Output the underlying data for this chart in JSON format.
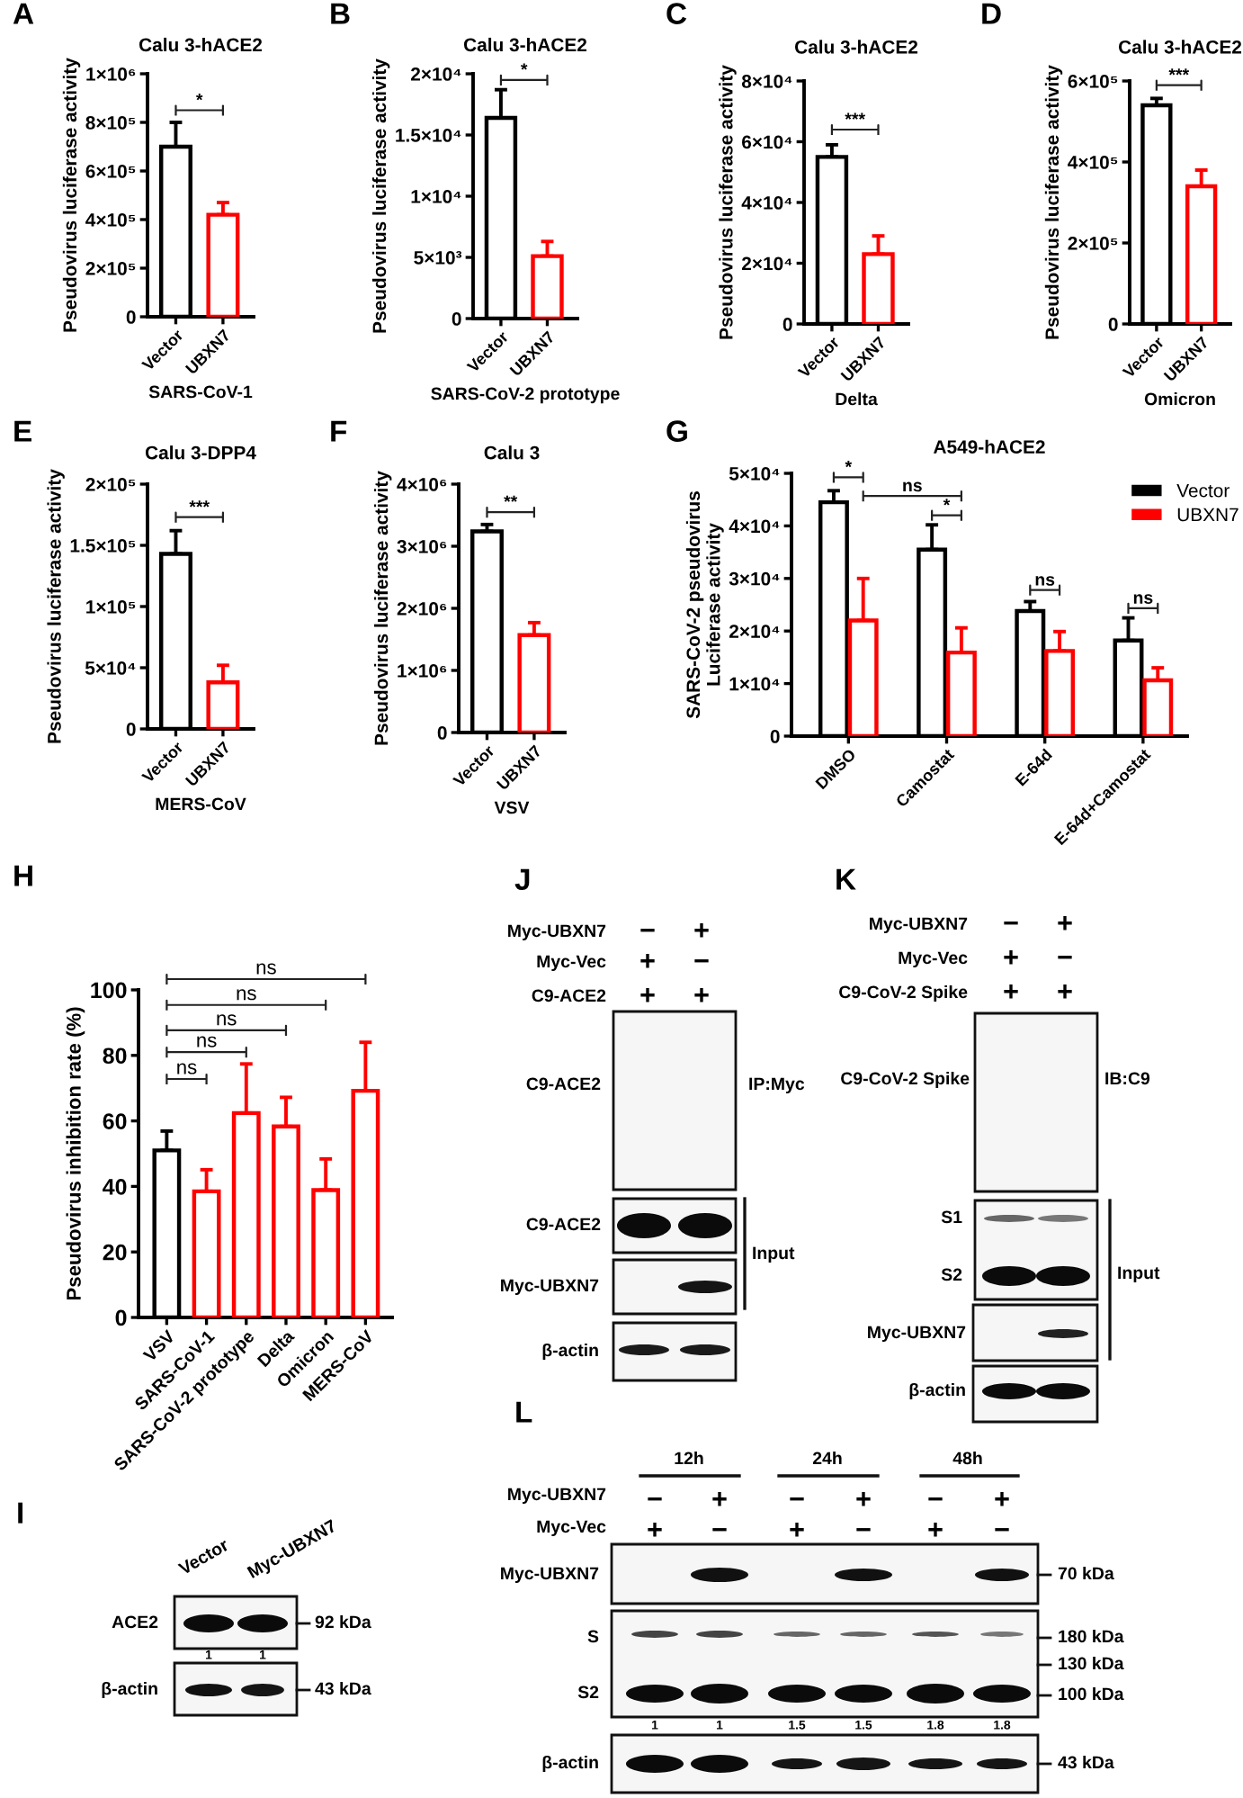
{
  "chart_data": [
    {
      "type": "bar",
      "title": "Calu 3-hACE2",
      "xlabel": "SARS-CoV-1",
      "ylabel": "Pseudovirus luciferase activity",
      "categories": [
        "Vector",
        "UBXN7"
      ],
      "values": [
        700000,
        420000
      ],
      "colors": [
        "#000000",
        "#ff0000"
      ],
      "errors": [
        [
          700000,
          800000
        ],
        [
          420000,
          470000
        ]
      ],
      "ylim": [
        0,
        1000000
      ],
      "yticks": [
        0,
        {
          "value": 200000,
          "label": "2×10⁵"
        },
        {
          "value": 400000,
          "label": "4×10⁵"
        },
        {
          "value": 600000,
          "label": "6×10⁵"
        },
        {
          "value": 800000,
          "label": "8×10⁵"
        },
        {
          "value": 1000000,
          "label": "1×10⁶"
        }
      ],
      "annotations": [
        "A",
        "*"
      ]
    },
    {
      "type": "bar",
      "title": "Calu 3-hACE2",
      "xlabel": "SARS-CoV-2 prototype",
      "ylabel": "Pseudovirus luciferase activity",
      "categories": [
        "Vector",
        "UBXN7"
      ],
      "values": [
        16400,
        5100
      ],
      "colors": [
        "#000000",
        "#ff0000"
      ],
      "errors": [
        [
          16400,
          18700
        ],
        [
          5100,
          6300
        ]
      ],
      "ylim": [
        0,
        20000
      ],
      "yticks": [
        0,
        {
          "value": 5000,
          "label": "5×10³"
        },
        {
          "value": 10000,
          "label": "1×10⁴"
        },
        {
          "value": 15000,
          "label": "1.5×10⁴"
        },
        {
          "value": 20000,
          "label": "2×10⁴"
        }
      ],
      "annotations": [
        "B",
        "*"
      ]
    },
    {
      "type": "bar",
      "title": "Calu 3-hACE2",
      "xlabel": "Delta",
      "ylabel": "Pseudovirus luciferase activity",
      "categories": [
        "Vector",
        "UBXN7"
      ],
      "values": [
        55000,
        23000
      ],
      "colors": [
        "#000000",
        "#ff0000"
      ],
      "errors": [
        [
          55000,
          59000
        ],
        [
          23000,
          29000
        ]
      ],
      "ylim": [
        0,
        80000
      ],
      "yticks": [
        0,
        {
          "value": 20000,
          "label": "2×10⁴"
        },
        {
          "value": 40000,
          "label": "4×10⁴"
        },
        {
          "value": 60000,
          "label": "6×10⁴"
        },
        {
          "value": 80000,
          "label": "8×10⁴"
        }
      ],
      "annotations": [
        "C",
        "***"
      ]
    },
    {
      "type": "bar",
      "title": "Calu 3-hACE2",
      "xlabel": "Omicron",
      "ylabel": "Pseudovirus luciferase activity",
      "categories": [
        "Vector",
        "UBXN7"
      ],
      "values": [
        540000,
        340000
      ],
      "colors": [
        "#000000",
        "#ff0000"
      ],
      "errors": [
        [
          540000,
          557000
        ],
        [
          340000,
          380000
        ]
      ],
      "ylim": [
        0,
        600000
      ],
      "yticks": [
        0,
        {
          "value": 200000,
          "label": "2×10⁵"
        },
        {
          "value": 400000,
          "label": "4×10⁵"
        },
        {
          "value": 600000,
          "label": "6×10⁵"
        }
      ],
      "annotations": [
        "D",
        "***"
      ]
    },
    {
      "type": "bar",
      "title": "Calu 3-DPP4",
      "xlabel": "MERS-CoV",
      "ylabel": "Pseudovirus luciferase activity",
      "categories": [
        "Vector",
        "UBXN7"
      ],
      "values": [
        143000,
        38000
      ],
      "colors": [
        "#000000",
        "#ff0000"
      ],
      "errors": [
        [
          143000,
          162000
        ],
        [
          38000,
          52000
        ]
      ],
      "ylim": [
        0,
        200000
      ],
      "yticks": [
        0,
        {
          "value": 50000,
          "label": "5×10⁴"
        },
        {
          "value": 100000,
          "label": "1×10⁵"
        },
        {
          "value": 150000,
          "label": "1.5×10⁵"
        },
        {
          "value": 200000,
          "label": "2×10⁵"
        }
      ],
      "annotations": [
        "E",
        "***"
      ]
    },
    {
      "type": "bar",
      "title": "Calu 3",
      "xlabel": "VSV",
      "ylabel": "Pseudovirus luciferase activity",
      "categories": [
        "Vector",
        "UBXN7"
      ],
      "values": [
        3240000,
        1570000
      ],
      "colors": [
        "#000000",
        "#ff0000"
      ],
      "errors": [
        [
          3240000,
          3350000
        ],
        [
          1570000,
          1770000
        ]
      ],
      "ylim": [
        0,
        4000000
      ],
      "yticks": [
        0,
        {
          "value": 1000000,
          "label": "1×10⁶"
        },
        {
          "value": 2000000,
          "label": "2×10⁶"
        },
        {
          "value": 3000000,
          "label": "3×10⁶"
        },
        {
          "value": 4000000,
          "label": "4×10⁶"
        }
      ],
      "annotations": [
        "F",
        "**"
      ]
    },
    {
      "type": "bar",
      "title": "A549-hACE2",
      "ylabel": "SARS-CoV-2 pseudovirus\nLuciferase activity",
      "categories": [
        "DMSO",
        "Camostat",
        "E-64d",
        "E-64d+Camostat"
      ],
      "series": [
        {
          "name": "Vector",
          "color": "#000000",
          "values": [
            44500,
            35500,
            23800,
            18200
          ],
          "errors": [
            [
              44500,
              46700
            ],
            [
              35500,
              40200
            ],
            [
              23800,
              25600
            ],
            [
              18200,
              22500
            ]
          ]
        },
        {
          "name": "UBXN7",
          "color": "#ff0000",
          "values": [
            22000,
            15900,
            16200,
            10600
          ],
          "errors": [
            [
              22000,
              30000
            ],
            [
              15900,
              20600
            ],
            [
              16200,
              19900
            ],
            [
              10600,
              13000
            ]
          ]
        }
      ],
      "ylim": [
        0,
        50000
      ],
      "yticks": [
        0,
        {
          "value": 10000,
          "label": "1×10⁴"
        },
        {
          "value": 20000,
          "label": "2×10⁴"
        },
        {
          "value": 30000,
          "label": "3×10⁴"
        },
        {
          "value": 40000,
          "label": "4×10⁴"
        },
        {
          "value": 50000,
          "label": "5×10⁴"
        }
      ],
      "legend": "top right",
      "annotations": [
        "G",
        "*",
        "ns",
        "*",
        "ns",
        "ns"
      ]
    },
    {
      "type": "bar",
      "ylabel": "Pseudovirus inhibition rate (%)",
      "categories": [
        "VSV",
        "SARS-CoV-1",
        "SARS-CoV-2 prototype",
        "Delta",
        "Omicron",
        "MERS-CoV"
      ],
      "values": [
        51,
        38.5,
        62.4,
        58.3,
        38.9,
        69.2
      ],
      "colors": [
        "#000000",
        "#ff0000",
        "#ff0000",
        "#ff0000",
        "#ff0000",
        "#ff0000"
      ],
      "errors": [
        [
          51,
          56.9
        ],
        [
          38.5,
          45.1
        ],
        [
          62.4,
          77.4
        ],
        [
          58.3,
          67.2
        ],
        [
          38.9,
          48.4
        ],
        [
          69.2,
          84
        ]
      ],
      "ylim": [
        0,
        100
      ],
      "yticks": [
        0,
        20,
        40,
        60,
        80,
        100
      ],
      "annotations": [
        "H",
        "ns",
        "ns",
        "ns",
        "ns",
        "ns"
      ]
    },
    {
      "type": "other",
      "annotations": [
        "J",
        "Myc-UBXN7",
        "−",
        "+",
        "Myc-Vec",
        "+",
        "−",
        "C9-ACE2",
        "+",
        "+",
        "C9-ACE2",
        "IP:Myc",
        "C9-ACE2",
        "Input",
        "Myc-UBXN7",
        "β-actin"
      ]
    },
    {
      "type": "other",
      "annotations": [
        "K",
        "Myc-UBXN7",
        "−",
        "+",
        "Myc-Vec",
        "+",
        "−",
        "C9-CoV-2 Spike",
        "+",
        "+",
        "C9-CoV-2 Spike",
        "IB:C9",
        "S1",
        "S2",
        "Input",
        "Myc-UBXN7",
        "β-actin"
      ]
    },
    {
      "type": "other",
      "annotations": [
        "I",
        "Vector",
        "Myc-UBXN7",
        "ACE2",
        "92 kDa",
        "1",
        "1",
        "β-actin",
        "43 kDa"
      ]
    },
    {
      "type": "other",
      "annotations": [
        "L",
        "12h",
        "24h",
        "48h",
        "Myc-UBXN7",
        "−",
        "+",
        "−",
        "+",
        "−",
        "+",
        "Myc-Vec",
        "+",
        "−",
        "+",
        "−",
        "+",
        "−",
        "Myc-UBXN7",
        "70 kDa",
        "S",
        "180 kDa",
        "130 kDa",
        "S2",
        "100 kDa",
        "1",
        "1",
        "1.5",
        "1.5",
        "1.8",
        "1.8",
        "β-actin",
        "43 kDa"
      ]
    }
  ]
}
